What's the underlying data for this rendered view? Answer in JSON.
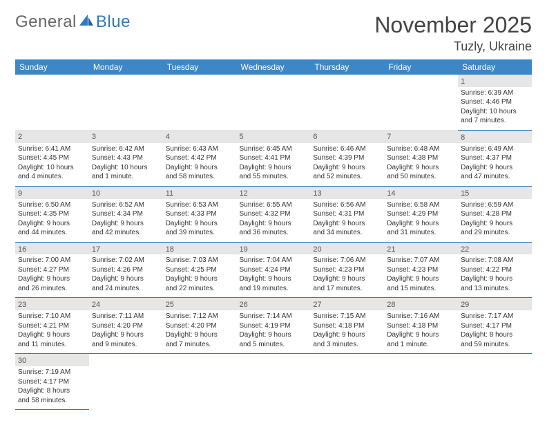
{
  "brand": {
    "part1": "General",
    "part2": "Blue"
  },
  "title": "November 2025",
  "location": "Tuzly, Ukraine",
  "headers": [
    "Sunday",
    "Monday",
    "Tuesday",
    "Wednesday",
    "Thursday",
    "Friday",
    "Saturday"
  ],
  "colors": {
    "header_bg": "#3b87c8",
    "daynum_bg": "#e6e6e6",
    "rule": "#2b7bbf"
  },
  "weeks": [
    {
      "nums": [
        "",
        "",
        "",
        "",
        "",
        "",
        "1"
      ],
      "cells": [
        null,
        null,
        null,
        null,
        null,
        null,
        {
          "sunrise": "Sunrise: 6:39 AM",
          "sunset": "Sunset: 4:46 PM",
          "day1": "Daylight: 10 hours",
          "day2": "and 7 minutes."
        }
      ]
    },
    {
      "nums": [
        "2",
        "3",
        "4",
        "5",
        "6",
        "7",
        "8"
      ],
      "cells": [
        {
          "sunrise": "Sunrise: 6:41 AM",
          "sunset": "Sunset: 4:45 PM",
          "day1": "Daylight: 10 hours",
          "day2": "and 4 minutes."
        },
        {
          "sunrise": "Sunrise: 6:42 AM",
          "sunset": "Sunset: 4:43 PM",
          "day1": "Daylight: 10 hours",
          "day2": "and 1 minute."
        },
        {
          "sunrise": "Sunrise: 6:43 AM",
          "sunset": "Sunset: 4:42 PM",
          "day1": "Daylight: 9 hours",
          "day2": "and 58 minutes."
        },
        {
          "sunrise": "Sunrise: 6:45 AM",
          "sunset": "Sunset: 4:41 PM",
          "day1": "Daylight: 9 hours",
          "day2": "and 55 minutes."
        },
        {
          "sunrise": "Sunrise: 6:46 AM",
          "sunset": "Sunset: 4:39 PM",
          "day1": "Daylight: 9 hours",
          "day2": "and 52 minutes."
        },
        {
          "sunrise": "Sunrise: 6:48 AM",
          "sunset": "Sunset: 4:38 PM",
          "day1": "Daylight: 9 hours",
          "day2": "and 50 minutes."
        },
        {
          "sunrise": "Sunrise: 6:49 AM",
          "sunset": "Sunset: 4:37 PM",
          "day1": "Daylight: 9 hours",
          "day2": "and 47 minutes."
        }
      ]
    },
    {
      "nums": [
        "9",
        "10",
        "11",
        "12",
        "13",
        "14",
        "15"
      ],
      "cells": [
        {
          "sunrise": "Sunrise: 6:50 AM",
          "sunset": "Sunset: 4:35 PM",
          "day1": "Daylight: 9 hours",
          "day2": "and 44 minutes."
        },
        {
          "sunrise": "Sunrise: 6:52 AM",
          "sunset": "Sunset: 4:34 PM",
          "day1": "Daylight: 9 hours",
          "day2": "and 42 minutes."
        },
        {
          "sunrise": "Sunrise: 6:53 AM",
          "sunset": "Sunset: 4:33 PM",
          "day1": "Daylight: 9 hours",
          "day2": "and 39 minutes."
        },
        {
          "sunrise": "Sunrise: 6:55 AM",
          "sunset": "Sunset: 4:32 PM",
          "day1": "Daylight: 9 hours",
          "day2": "and 36 minutes."
        },
        {
          "sunrise": "Sunrise: 6:56 AM",
          "sunset": "Sunset: 4:31 PM",
          "day1": "Daylight: 9 hours",
          "day2": "and 34 minutes."
        },
        {
          "sunrise": "Sunrise: 6:58 AM",
          "sunset": "Sunset: 4:29 PM",
          "day1": "Daylight: 9 hours",
          "day2": "and 31 minutes."
        },
        {
          "sunrise": "Sunrise: 6:59 AM",
          "sunset": "Sunset: 4:28 PM",
          "day1": "Daylight: 9 hours",
          "day2": "and 29 minutes."
        }
      ]
    },
    {
      "nums": [
        "16",
        "17",
        "18",
        "19",
        "20",
        "21",
        "22"
      ],
      "cells": [
        {
          "sunrise": "Sunrise: 7:00 AM",
          "sunset": "Sunset: 4:27 PM",
          "day1": "Daylight: 9 hours",
          "day2": "and 26 minutes."
        },
        {
          "sunrise": "Sunrise: 7:02 AM",
          "sunset": "Sunset: 4:26 PM",
          "day1": "Daylight: 9 hours",
          "day2": "and 24 minutes."
        },
        {
          "sunrise": "Sunrise: 7:03 AM",
          "sunset": "Sunset: 4:25 PM",
          "day1": "Daylight: 9 hours",
          "day2": "and 22 minutes."
        },
        {
          "sunrise": "Sunrise: 7:04 AM",
          "sunset": "Sunset: 4:24 PM",
          "day1": "Daylight: 9 hours",
          "day2": "and 19 minutes."
        },
        {
          "sunrise": "Sunrise: 7:06 AM",
          "sunset": "Sunset: 4:23 PM",
          "day1": "Daylight: 9 hours",
          "day2": "and 17 minutes."
        },
        {
          "sunrise": "Sunrise: 7:07 AM",
          "sunset": "Sunset: 4:23 PM",
          "day1": "Daylight: 9 hours",
          "day2": "and 15 minutes."
        },
        {
          "sunrise": "Sunrise: 7:08 AM",
          "sunset": "Sunset: 4:22 PM",
          "day1": "Daylight: 9 hours",
          "day2": "and 13 minutes."
        }
      ]
    },
    {
      "nums": [
        "23",
        "24",
        "25",
        "26",
        "27",
        "28",
        "29"
      ],
      "cells": [
        {
          "sunrise": "Sunrise: 7:10 AM",
          "sunset": "Sunset: 4:21 PM",
          "day1": "Daylight: 9 hours",
          "day2": "and 11 minutes."
        },
        {
          "sunrise": "Sunrise: 7:11 AM",
          "sunset": "Sunset: 4:20 PM",
          "day1": "Daylight: 9 hours",
          "day2": "and 9 minutes."
        },
        {
          "sunrise": "Sunrise: 7:12 AM",
          "sunset": "Sunset: 4:20 PM",
          "day1": "Daylight: 9 hours",
          "day2": "and 7 minutes."
        },
        {
          "sunrise": "Sunrise: 7:14 AM",
          "sunset": "Sunset: 4:19 PM",
          "day1": "Daylight: 9 hours",
          "day2": "and 5 minutes."
        },
        {
          "sunrise": "Sunrise: 7:15 AM",
          "sunset": "Sunset: 4:18 PM",
          "day1": "Daylight: 9 hours",
          "day2": "and 3 minutes."
        },
        {
          "sunrise": "Sunrise: 7:16 AM",
          "sunset": "Sunset: 4:18 PM",
          "day1": "Daylight: 9 hours",
          "day2": "and 1 minute."
        },
        {
          "sunrise": "Sunrise: 7:17 AM",
          "sunset": "Sunset: 4:17 PM",
          "day1": "Daylight: 8 hours",
          "day2": "and 59 minutes."
        }
      ]
    },
    {
      "nums": [
        "30",
        "",
        "",
        "",
        "",
        "",
        ""
      ],
      "cells": [
        {
          "sunrise": "Sunrise: 7:19 AM",
          "sunset": "Sunset: 4:17 PM",
          "day1": "Daylight: 8 hours",
          "day2": "and 58 minutes."
        },
        null,
        null,
        null,
        null,
        null,
        null
      ]
    }
  ]
}
